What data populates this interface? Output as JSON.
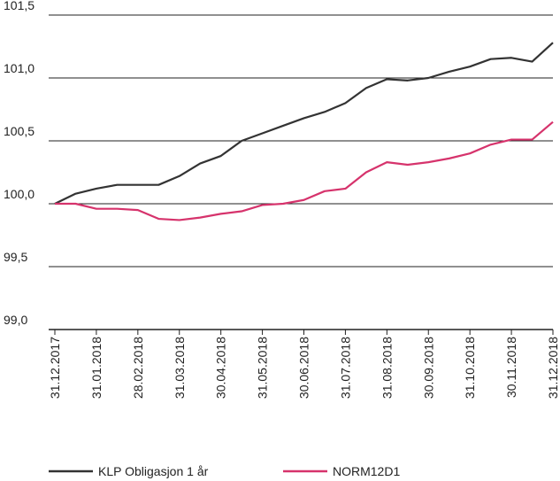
{
  "chart_data": {
    "type": "line",
    "categories": [
      "31.12.2017",
      null,
      "31.01.2018",
      null,
      "28.02.2018",
      null,
      "31.03.2018",
      null,
      "30.04.2018",
      null,
      "31.05.2018",
      null,
      "30.06.2018",
      null,
      "31.07.2018",
      null,
      "31.08.2018",
      null,
      "30.09.2018",
      null,
      "31.10.2018",
      null,
      "30.11.2018",
      null,
      "31.12.2018"
    ],
    "series": [
      {
        "name": "KLP Obligasjon 1 år",
        "color": "#333333",
        "values": [
          100.0,
          100.08,
          100.12,
          100.15,
          100.15,
          100.15,
          100.22,
          100.32,
          100.38,
          100.5,
          100.56,
          100.62,
          100.68,
          100.73,
          100.8,
          100.92,
          100.99,
          100.98,
          101.0,
          101.05,
          101.09,
          101.15,
          101.16,
          101.13,
          101.28
        ]
      },
      {
        "name": "NORM12D1",
        "color": "#d6336c",
        "values": [
          100.0,
          100.0,
          99.96,
          99.96,
          99.95,
          99.88,
          99.87,
          99.89,
          99.92,
          99.94,
          99.99,
          100.0,
          100.03,
          100.1,
          100.12,
          100.25,
          100.33,
          100.31,
          100.33,
          100.36,
          100.4,
          100.47,
          100.51,
          100.51,
          100.65
        ]
      }
    ],
    "ylim": [
      99.0,
      101.5
    ],
    "yticks": [
      {
        "value": 99.0,
        "label": "99,0"
      },
      {
        "value": 99.5,
        "label": "99,5"
      },
      {
        "value": 100.0,
        "label": "100,0"
      },
      {
        "value": 100.5,
        "label": "100,5"
      },
      {
        "value": 101.0,
        "label": "101,0"
      },
      {
        "value": 101.5,
        "label": "101,5"
      }
    ],
    "grid": true,
    "legend": "bottom"
  }
}
